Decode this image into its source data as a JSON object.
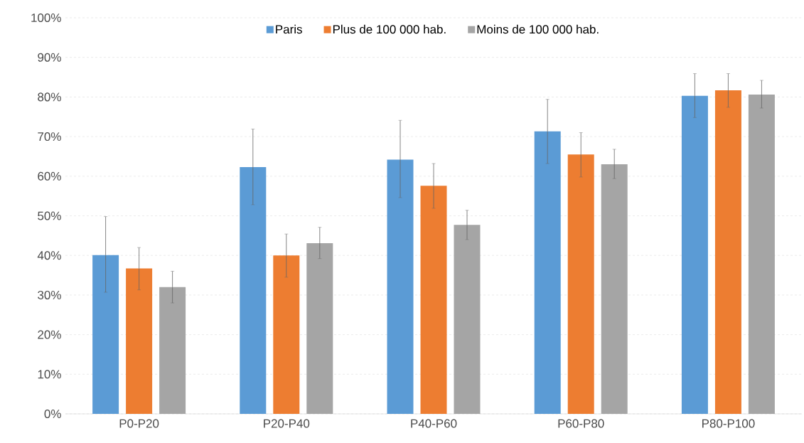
{
  "chart_data": {
    "type": "bar",
    "categories": [
      "P0-P20",
      "P20-P40",
      "P40-P60",
      "P60-P80",
      "P80-P100"
    ],
    "series": [
      {
        "name": "Paris",
        "color": "#5b9bd5",
        "values": [
          40.1,
          62.3,
          64.2,
          71.3,
          80.3
        ],
        "errors": [
          [
            30.7,
            49.8
          ],
          [
            52.8,
            71.9
          ],
          [
            54.6,
            74.1
          ],
          [
            63.2,
            79.4
          ],
          [
            74.8,
            85.9
          ]
        ]
      },
      {
        "name": "Plus de 100 000 hab.",
        "color": "#ed7d31",
        "values": [
          36.7,
          40.0,
          57.6,
          65.5,
          81.7
        ],
        "errors": [
          [
            31.3,
            42.0
          ],
          [
            34.5,
            45.4
          ],
          [
            51.9,
            63.2
          ],
          [
            59.8,
            71.0
          ],
          [
            77.4,
            85.9
          ]
        ]
      },
      {
        "name": "Moins de 100 000 hab.",
        "color": "#a5a5a5",
        "values": [
          32.0,
          43.1,
          47.7,
          63.0,
          80.6
        ],
        "errors": [
          [
            28.0,
            36.0
          ],
          [
            39.2,
            47.1
          ],
          [
            44.0,
            51.4
          ],
          [
            59.4,
            66.8
          ],
          [
            77.2,
            84.2
          ]
        ]
      }
    ],
    "ylim": [
      0,
      100
    ],
    "yticks": [
      {
        "value": 0,
        "label": "0%"
      },
      {
        "value": 10,
        "label": "10%"
      },
      {
        "value": 20,
        "label": "20%"
      },
      {
        "value": 30,
        "label": "30%"
      },
      {
        "value": 40,
        "label": "40%"
      },
      {
        "value": 50,
        "label": "50%"
      },
      {
        "value": 60,
        "label": "60%"
      },
      {
        "value": 70,
        "label": "70%"
      },
      {
        "value": 80,
        "label": "80%"
      },
      {
        "value": 90,
        "label": "90%"
      },
      {
        "value": 100,
        "label": "100%"
      }
    ],
    "grid": "y",
    "legend": "top"
  }
}
